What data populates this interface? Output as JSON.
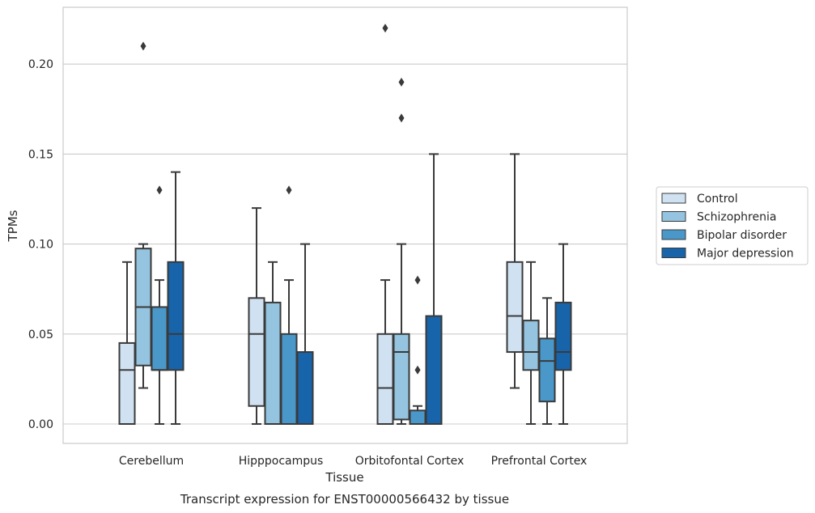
{
  "chart_data": {
    "type": "box",
    "title": "",
    "caption": "Transcript expression for ENST00000566432 by tissue",
    "xlabel": "Tissue",
    "ylabel": "TPMs",
    "ylim": [
      -0.011,
      0.232
    ],
    "yticks": [
      0.0,
      0.05,
      0.1,
      0.15,
      0.2
    ],
    "ytick_labels": [
      "0.00",
      "0.05",
      "0.10",
      "0.15",
      "0.20"
    ],
    "grid": "horizontal",
    "legend_position": "right",
    "categories": [
      "Cerebellum",
      "Hipppocampus",
      "Orbitofontal Cortex",
      "Prefrontal Cortex"
    ],
    "series": [
      {
        "name": "Control",
        "color": "#d0e1f2",
        "boxes": [
          {
            "whislo": 0.0,
            "q1": 0.0,
            "med": 0.03,
            "q3": 0.045,
            "whishi": 0.09,
            "fliers": []
          },
          {
            "whislo": 0.0,
            "q1": 0.01,
            "med": 0.05,
            "q3": 0.07,
            "whishi": 0.12,
            "fliers": []
          },
          {
            "whislo": 0.0,
            "q1": 0.0,
            "med": 0.02,
            "q3": 0.05,
            "whishi": 0.08,
            "fliers": [
              0.22
            ]
          },
          {
            "whislo": 0.02,
            "q1": 0.04,
            "med": 0.06,
            "q3": 0.09,
            "whishi": 0.15,
            "fliers": []
          }
        ]
      },
      {
        "name": "Schizophrenia",
        "color": "#94c4df",
        "boxes": [
          {
            "whislo": 0.02,
            "q1": 0.0325,
            "med": 0.065,
            "q3": 0.0975,
            "whishi": 0.1,
            "fliers": [
              0.21
            ]
          },
          {
            "whislo": 0.0,
            "q1": 0.0,
            "med": 0.0,
            "q3": 0.0675,
            "whishi": 0.09,
            "fliers": []
          },
          {
            "whislo": 0.0,
            "q1": 0.0025,
            "med": 0.04,
            "q3": 0.05,
            "whishi": 0.1,
            "fliers": [
              0.19,
              0.17
            ]
          },
          {
            "whislo": 0.0,
            "q1": 0.03,
            "med": 0.04,
            "q3": 0.0575,
            "whishi": 0.09,
            "fliers": []
          }
        ]
      },
      {
        "name": "Bipolar disorder",
        "color": "#4a98c9",
        "boxes": [
          {
            "whislo": 0.0,
            "q1": 0.03,
            "med": 0.03,
            "q3": 0.065,
            "whishi": 0.08,
            "fliers": [
              0.13
            ]
          },
          {
            "whislo": 0.0,
            "q1": 0.0,
            "med": 0.0,
            "q3": 0.05,
            "whishi": 0.08,
            "fliers": [
              0.13
            ]
          },
          {
            "whislo": 0.0,
            "q1": 0.0,
            "med": 0.0,
            "q3": 0.0075,
            "whishi": 0.01,
            "fliers": [
              0.08,
              0.03
            ]
          },
          {
            "whislo": 0.0,
            "q1": 0.0125,
            "med": 0.035,
            "q3": 0.0475,
            "whishi": 0.07,
            "fliers": []
          }
        ]
      },
      {
        "name": "Major depression",
        "color": "#1764ab",
        "boxes": [
          {
            "whislo": 0.0,
            "q1": 0.03,
            "med": 0.05,
            "q3": 0.09,
            "whishi": 0.14,
            "fliers": []
          },
          {
            "whislo": 0.0,
            "q1": 0.0,
            "med": 0.0,
            "q3": 0.04,
            "whishi": 0.1,
            "fliers": []
          },
          {
            "whislo": 0.0,
            "q1": 0.0,
            "med": 0.0,
            "q3": 0.06,
            "whishi": 0.15,
            "fliers": []
          },
          {
            "whislo": 0.0,
            "q1": 0.03,
            "med": 0.04,
            "q3": 0.0675,
            "whishi": 0.1,
            "fliers": []
          }
        ]
      }
    ]
  }
}
